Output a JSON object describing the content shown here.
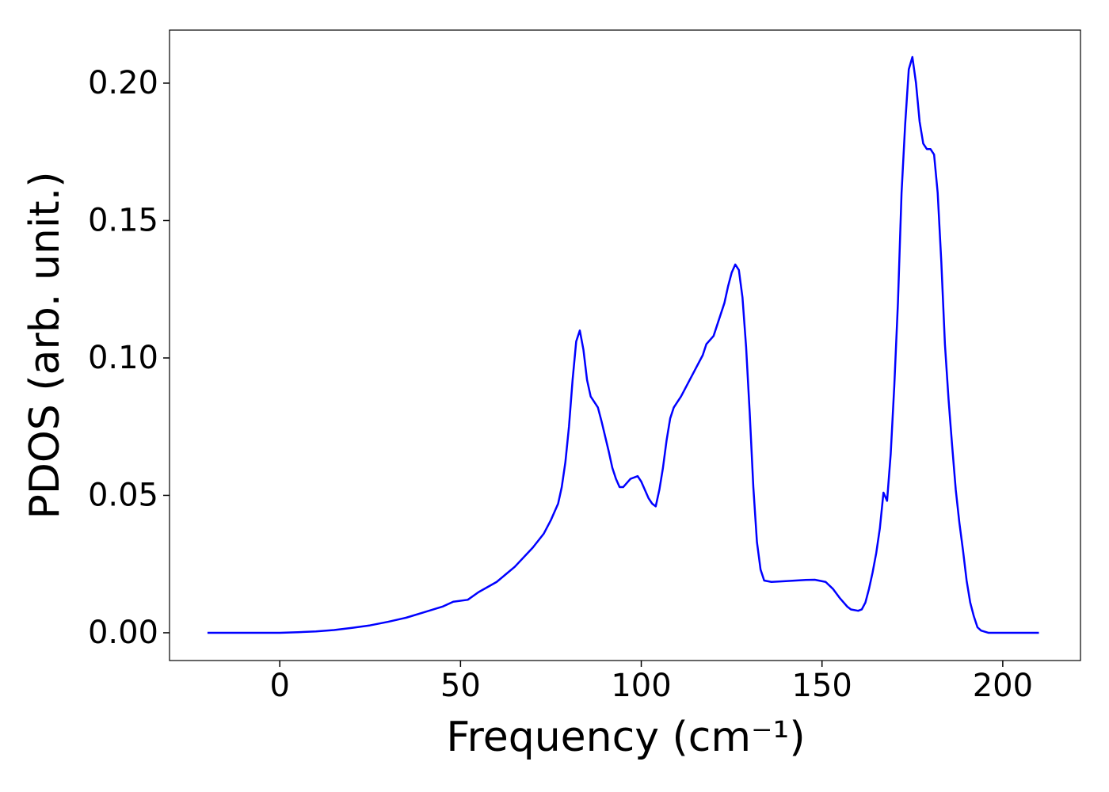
{
  "chart_data": {
    "type": "line",
    "xlabel": "Frequency (cm⁻¹)",
    "ylabel": "PDOS (arb. unit.)",
    "x": [
      -20,
      0,
      5,
      10,
      15,
      20,
      25,
      30,
      35,
      40,
      45,
      48,
      52,
      55,
      60,
      65,
      70,
      73,
      75,
      77,
      78,
      79,
      80,
      81,
      82,
      83,
      84,
      85,
      86,
      88,
      89,
      91,
      92,
      93,
      94,
      95,
      97,
      99,
      100,
      102,
      103,
      104,
      105,
      106,
      107,
      108,
      109,
      111,
      113,
      115,
      117,
      118,
      120,
      121,
      123,
      124,
      125,
      126,
      127,
      128,
      129,
      130,
      131,
      132,
      133,
      134,
      136,
      140,
      145,
      148,
      151,
      153,
      155,
      157,
      158,
      160,
      161,
      162,
      163,
      164,
      165,
      166,
      167,
      168,
      169,
      170,
      171,
      172,
      173,
      174,
      175,
      176,
      177,
      178,
      179,
      180,
      181,
      182,
      183,
      184,
      185,
      186,
      187,
      188,
      189,
      190,
      191,
      192,
      193,
      194,
      196,
      210
    ],
    "series": [
      {
        "name": "PDOS",
        "color": "#0000ff",
        "values": [
          0,
          0,
          0.0002,
          0.0005,
          0.001,
          0.0018,
          0.0027,
          0.004,
          0.0055,
          0.0075,
          0.0095,
          0.0113,
          0.012,
          0.0148,
          0.0185,
          0.024,
          0.031,
          0.036,
          0.041,
          0.047,
          0.053,
          0.062,
          0.075,
          0.092,
          0.106,
          0.11,
          0.103,
          0.092,
          0.086,
          0.082,
          0.077,
          0.066,
          0.06,
          0.056,
          0.053,
          0.053,
          0.056,
          0.057,
          0.055,
          0.049,
          0.047,
          0.046,
          0.052,
          0.06,
          0.07,
          0.078,
          0.082,
          0.086,
          0.091,
          0.096,
          0.101,
          0.105,
          0.108,
          0.112,
          0.12,
          0.126,
          0.131,
          0.134,
          0.132,
          0.122,
          0.104,
          0.08,
          0.053,
          0.033,
          0.023,
          0.019,
          0.0185,
          0.0188,
          0.0192,
          0.0193,
          0.0185,
          0.016,
          0.0125,
          0.0095,
          0.0085,
          0.008,
          0.0085,
          0.011,
          0.016,
          0.022,
          0.029,
          0.038,
          0.051,
          0.048,
          0.065,
          0.09,
          0.12,
          0.16,
          0.185,
          0.205,
          0.2095,
          0.2,
          0.186,
          0.178,
          0.176,
          0.176,
          0.174,
          0.16,
          0.135,
          0.105,
          0.085,
          0.068,
          0.052,
          0.04,
          0.03,
          0.019,
          0.011,
          0.006,
          0.002,
          0.0008,
          0,
          0
        ]
      }
    ],
    "xlim": [
      -30.5,
      221.5
    ],
    "ylim": [
      -0.0101,
      0.2193
    ],
    "xticks": [
      0,
      50,
      100,
      150,
      200
    ],
    "yticks": [
      {
        "value": 0,
        "label": "0.00"
      },
      {
        "value": 0.05,
        "label": "0.05"
      },
      {
        "value": 0.1,
        "label": "0.10"
      },
      {
        "value": 0.15,
        "label": "0.15"
      },
      {
        "value": 0.2,
        "label": "0.20"
      }
    ],
    "grid": false
  }
}
